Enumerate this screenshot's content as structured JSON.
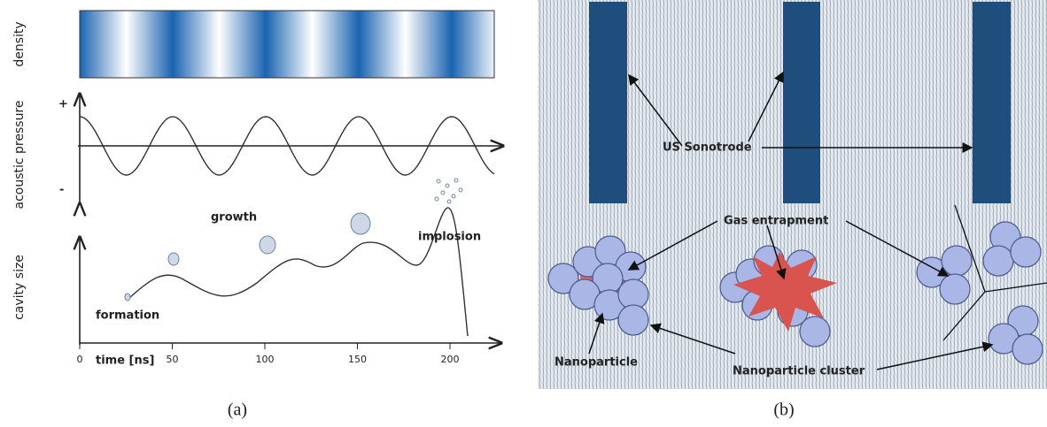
{
  "panel_a": {
    "density_label": "density",
    "pressure_label": "acoustic pressure",
    "plus": "+",
    "minus": "-",
    "cavity_label": "cavity size",
    "growth": "growth",
    "implosion": "implosion",
    "formation": "formation",
    "time_label": "time [ns]",
    "time_ticks": [
      0,
      50,
      100,
      150,
      200
    ],
    "caption": "(a)"
  },
  "panel_b": {
    "sonotrode": "US Sonotrode",
    "gas": "Gas entrapment",
    "nanoparticle": "Nanoparticle",
    "cluster": "Nanoparticle cluster",
    "caption": "(b)"
  }
}
